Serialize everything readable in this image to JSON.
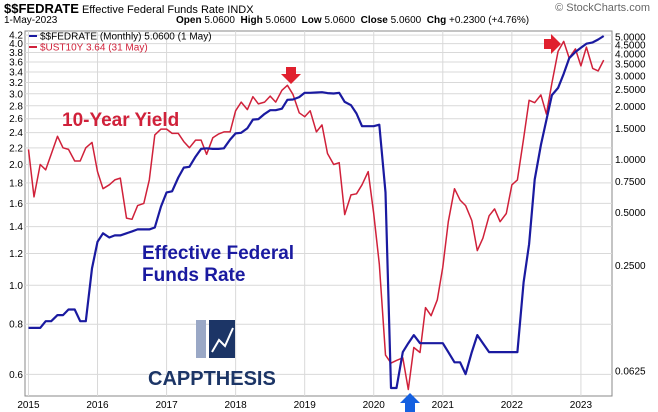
{
  "header": {
    "symbol": "$$FEDRATE",
    "name": "Effective Federal Funds Rate",
    "exchange": "INDX",
    "date": "1-May-2023",
    "open_label": "Open",
    "open": "5.0600",
    "high_label": "High",
    "high": "5.0600",
    "low_label": "Low",
    "low": "5.0600",
    "close_label": "Close",
    "close": "5.0600",
    "chg_label": "Chg",
    "chg": "+0.2300 (+4.76%)",
    "brand": "© StockCharts.com"
  },
  "legend": [
    {
      "text": "$$FEDRATE (Monthly) 5.0600 (1 May)",
      "color": "#1a1aa0"
    },
    {
      "text": "$UST10Y 3.64 (31 May)",
      "color": "#d0213a"
    }
  ],
  "annotations": {
    "yield": "10-Year Yield",
    "fed_line1": "Effective Federal",
    "fed_line2": "Funds Rate",
    "logo": "CAPPTHESIS"
  },
  "colors": {
    "fed": "#1a1aa0",
    "yield": "#d0213a",
    "arrow_red": "#e0202e",
    "arrow_blue": "#1560e0",
    "grid": "#d9d9d9"
  },
  "chart_data": {
    "type": "line",
    "x_range": [
      2014.95,
      2023.45
    ],
    "x_ticks": [
      {
        "label": "2015",
        "x": 2015.0
      },
      {
        "label": "2016",
        "x": 2016.0
      },
      {
        "label": "2017",
        "x": 2017.0
      },
      {
        "label": "2018",
        "x": 2018.0
      },
      {
        "label": "2019",
        "x": 2019.0
      },
      {
        "label": "2020",
        "x": 2020.0
      },
      {
        "label": "2021",
        "x": 2021.0
      },
      {
        "label": "2022",
        "x": 2022.0
      },
      {
        "label": "2023",
        "x": 2023.0
      }
    ],
    "left_axis": {
      "scale": "log",
      "ticks": [
        0.6,
        0.8,
        1.0,
        1.2,
        1.4,
        1.6,
        1.8,
        2.0,
        2.2,
        2.4,
        2.6,
        2.8,
        3.0,
        3.2,
        3.4,
        3.6,
        3.8,
        4.0,
        4.2
      ],
      "tick_labels": [
        "0.6",
        "0.8",
        "1.0",
        "1.2",
        "1.4",
        "1.6",
        "1.8",
        "2.0",
        "2.2",
        "2.4",
        "2.6",
        "2.8",
        "3.0",
        "3.2",
        "3.4",
        "3.6",
        "3.8",
        "4.0",
        "4.2"
      ],
      "range": [
        0.53,
        4.3
      ]
    },
    "right_axis": {
      "scale": "log",
      "tick_labels": [
        "5.0000",
        "4.5000",
        "4.0000",
        "3.5000",
        "3.0000",
        "2.5000",
        "2.0000",
        "1.5000",
        "1.0000",
        "0.7500",
        "0.5000",
        "0.2500",
        "0.0625"
      ],
      "tick_values": [
        5.0,
        4.5,
        4.0,
        3.5,
        3.0,
        2.5,
        2.0,
        1.5,
        1.0,
        0.75,
        0.5,
        0.25,
        0.0625
      ],
      "range": [
        0.045,
        5.4
      ]
    },
    "series": [
      {
        "name": "$UST10Y",
        "axis": "left",
        "x": [
          2015.0,
          2015.08,
          2015.17,
          2015.25,
          2015.33,
          2015.42,
          2015.5,
          2015.58,
          2015.67,
          2015.75,
          2015.83,
          2015.92,
          2016.0,
          2016.08,
          2016.17,
          2016.25,
          2016.33,
          2016.42,
          2016.5,
          2016.58,
          2016.67,
          2016.75,
          2016.83,
          2016.92,
          2017.0,
          2017.08,
          2017.17,
          2017.25,
          2017.33,
          2017.42,
          2017.5,
          2017.58,
          2017.67,
          2017.75,
          2017.83,
          2017.92,
          2018.0,
          2018.08,
          2018.17,
          2018.25,
          2018.33,
          2018.42,
          2018.5,
          2018.58,
          2018.67,
          2018.75,
          2018.83,
          2018.92,
          2019.0,
          2019.08,
          2019.17,
          2019.25,
          2019.33,
          2019.42,
          2019.5,
          2019.58,
          2019.67,
          2019.75,
          2019.83,
          2019.92,
          2020.0,
          2020.08,
          2020.17,
          2020.25,
          2020.33,
          2020.42,
          2020.5,
          2020.58,
          2020.67,
          2020.75,
          2020.83,
          2020.92,
          2021.0,
          2021.08,
          2021.17,
          2021.25,
          2021.33,
          2021.42,
          2021.5,
          2021.58,
          2021.67,
          2021.75,
          2021.83,
          2021.92,
          2022.0,
          2022.08,
          2022.17,
          2022.25,
          2022.33,
          2022.42,
          2022.5,
          2022.58,
          2022.67,
          2022.75,
          2022.83,
          2022.92,
          2023.0,
          2023.08,
          2023.17,
          2023.25,
          2023.33
        ],
        "values": [
          2.18,
          1.66,
          2.0,
          1.94,
          2.12,
          2.35,
          2.2,
          2.18,
          2.04,
          2.04,
          2.2,
          2.27,
          1.92,
          1.74,
          1.78,
          1.83,
          1.85,
          1.47,
          1.46,
          1.58,
          1.6,
          1.83,
          2.37,
          2.45,
          2.45,
          2.39,
          2.39,
          2.28,
          2.2,
          2.3,
          2.3,
          2.12,
          2.33,
          2.38,
          2.41,
          2.41,
          2.72,
          2.86,
          2.74,
          2.95,
          2.83,
          2.86,
          2.96,
          2.86,
          3.06,
          3.15,
          2.99,
          2.69,
          2.63,
          2.72,
          2.41,
          2.51,
          2.13,
          2.0,
          2.02,
          1.5,
          1.68,
          1.69,
          1.78,
          1.92,
          1.51,
          1.13,
          0.67,
          0.64,
          0.65,
          0.66,
          0.55,
          0.7,
          0.68,
          0.88,
          0.84,
          0.92,
          1.11,
          1.44,
          1.74,
          1.63,
          1.58,
          1.45,
          1.22,
          1.31,
          1.49,
          1.55,
          1.44,
          1.51,
          1.78,
          1.83,
          2.32,
          2.89,
          2.85,
          2.98,
          2.67,
          3.19,
          3.83,
          4.05,
          3.68,
          3.88,
          3.52,
          3.92,
          3.47,
          3.42,
          3.64
        ],
        "color": "#d0213a"
      },
      {
        "name": "$$FEDRATE",
        "axis": "right",
        "x": [
          2015.0,
          2015.08,
          2015.17,
          2015.25,
          2015.33,
          2015.42,
          2015.5,
          2015.58,
          2015.67,
          2015.75,
          2015.83,
          2015.92,
          2016.0,
          2016.08,
          2016.17,
          2016.25,
          2016.33,
          2016.42,
          2016.5,
          2016.58,
          2016.67,
          2016.75,
          2016.83,
          2016.92,
          2017.0,
          2017.08,
          2017.17,
          2017.25,
          2017.33,
          2017.42,
          2017.5,
          2017.58,
          2017.67,
          2017.75,
          2017.83,
          2017.92,
          2018.0,
          2018.08,
          2018.17,
          2018.25,
          2018.33,
          2018.42,
          2018.5,
          2018.58,
          2018.67,
          2018.75,
          2018.83,
          2018.92,
          2019.0,
          2019.08,
          2019.17,
          2019.25,
          2019.33,
          2019.42,
          2019.5,
          2019.58,
          2019.67,
          2019.75,
          2019.83,
          2019.92,
          2020.0,
          2020.08,
          2020.17,
          2020.25,
          2020.33,
          2020.42,
          2020.5,
          2020.58,
          2020.67,
          2020.75,
          2020.83,
          2020.92,
          2021.0,
          2021.08,
          2021.17,
          2021.25,
          2021.33,
          2021.42,
          2021.5,
          2021.58,
          2021.67,
          2021.75,
          2021.83,
          2021.92,
          2022.0,
          2022.08,
          2022.17,
          2022.25,
          2022.33,
          2022.42,
          2022.5,
          2022.58,
          2022.67,
          2022.75,
          2022.83,
          2022.92,
          2023.0,
          2023.08,
          2023.17,
          2023.25,
          2023.33
        ],
        "values": [
          0.11,
          0.11,
          0.11,
          0.12,
          0.12,
          0.13,
          0.13,
          0.14,
          0.14,
          0.12,
          0.12,
          0.24,
          0.34,
          0.38,
          0.36,
          0.37,
          0.37,
          0.38,
          0.39,
          0.4,
          0.4,
          0.4,
          0.41,
          0.54,
          0.65,
          0.66,
          0.79,
          0.9,
          0.91,
          1.04,
          1.15,
          1.16,
          1.15,
          1.15,
          1.16,
          1.3,
          1.41,
          1.42,
          1.51,
          1.69,
          1.7,
          1.82,
          1.91,
          1.91,
          1.95,
          2.19,
          2.2,
          2.27,
          2.4,
          2.4,
          2.41,
          2.42,
          2.39,
          2.38,
          2.4,
          2.13,
          2.04,
          1.83,
          1.55,
          1.55,
          1.55,
          1.58,
          0.65,
          0.05,
          0.05,
          0.08,
          0.09,
          0.1,
          0.09,
          0.09,
          0.09,
          0.09,
          0.09,
          0.08,
          0.07,
          0.07,
          0.06,
          0.08,
          0.1,
          0.09,
          0.08,
          0.08,
          0.08,
          0.08,
          0.08,
          0.08,
          0.2,
          0.33,
          0.77,
          1.21,
          1.68,
          2.33,
          2.56,
          3.08,
          3.78,
          4.1,
          4.33,
          4.57,
          4.65,
          4.83,
          5.06
        ],
        "color": "#1a1aa0"
      }
    ]
  }
}
